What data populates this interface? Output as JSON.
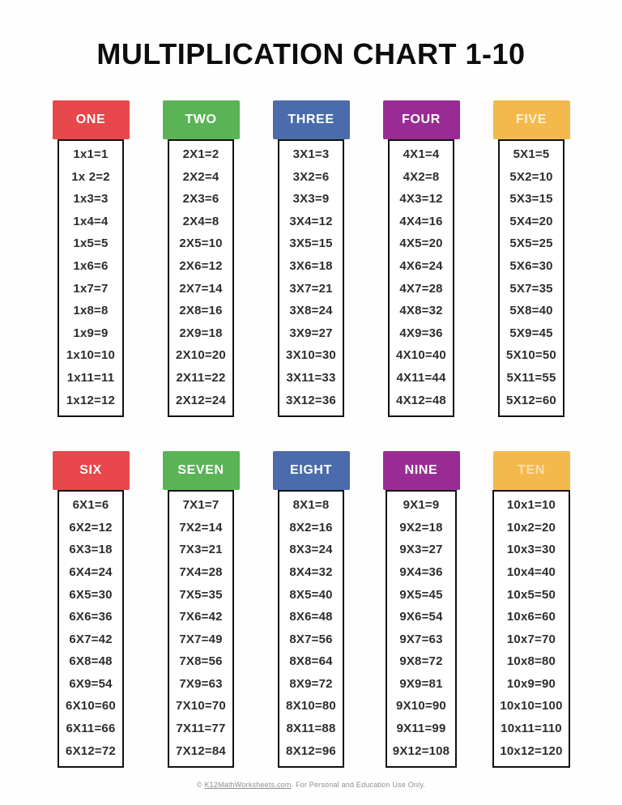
{
  "title": "MULTIPLICATION CHART 1-10",
  "palette": {
    "red": "#E8474B",
    "green": "#5AB455",
    "blue": "#4A6CAC",
    "purple": "#992C94",
    "yellow": "#F3B94C",
    "equation_text": "#2D2D2D",
    "border": "#121212"
  },
  "columns": [
    {
      "label": "ONE",
      "header_color": "#E8474B",
      "label_opacity": 1,
      "rows": [
        "1x1=1",
        "1x 2=2",
        "1x3=3",
        "1x4=4",
        "1x5=5",
        "1x6=6",
        "1x7=7",
        "1x8=8",
        "1x9=9",
        "1x10=10",
        "1x11=11",
        "1x12=12"
      ]
    },
    {
      "label": "TWO",
      "header_color": "#5AB455",
      "label_opacity": 1,
      "rows": [
        "2X1=2",
        "2X2=4",
        "2X3=6",
        "2X4=8",
        "2X5=10",
        "2X6=12",
        "2X7=14",
        "2X8=16",
        "2X9=18",
        "2X10=20",
        "2X11=22",
        "2X12=24"
      ]
    },
    {
      "label": "THREE",
      "header_color": "#4A6CAC",
      "label_opacity": 1,
      "rows": [
        "3X1=3",
        "3X2=6",
        "3X3=9",
        "3X4=12",
        "3X5=15",
        "3X6=18",
        "3X7=21",
        "3X8=24",
        "3X9=27",
        "3X10=30",
        "3X11=33",
        "3X12=36"
      ]
    },
    {
      "label": "FOUR",
      "header_color": "#992C94",
      "label_opacity": 1,
      "rows": [
        "4X1=4",
        "4X2=8",
        "4X3=12",
        "4X4=16",
        "4X5=20",
        "4X6=24",
        "4X7=28",
        "4X8=32",
        "4X9=36",
        "4X10=40",
        "4X11=44",
        "4X12=48"
      ]
    },
    {
      "label": "FIVE",
      "header_color": "#F3B94C",
      "label_opacity": 0.8,
      "rows": [
        "5X1=5",
        "5X2=10",
        "5X3=15",
        "5X4=20",
        "5X5=25",
        "5X6=30",
        "5X7=35",
        "5X8=40",
        "5X9=45",
        "5X10=50",
        "5X11=55",
        "5X12=60"
      ]
    },
    {
      "label": "SIX",
      "header_color": "#E8474B",
      "label_opacity": 1,
      "rows": [
        "6X1=6",
        "6X2=12",
        "6X3=18",
        "6X4=24",
        "6X5=30",
        "6X6=36",
        "6X7=42",
        "6X8=48",
        "6X9=54",
        "6X10=60",
        "6X11=66",
        "6X12=72"
      ]
    },
    {
      "label": "SEVEN",
      "header_color": "#5AB455",
      "label_opacity": 1,
      "rows": [
        "7X1=7",
        "7X2=14",
        "7X3=21",
        "7X4=28",
        "7X5=35",
        "7X6=42",
        "7X7=49",
        "7X8=56",
        "7X9=63",
        "7X10=70",
        "7X11=77",
        "7X12=84"
      ]
    },
    {
      "label": "EIGHT",
      "header_color": "#4A6CAC",
      "label_opacity": 1,
      "rows": [
        "8X1=8",
        "8X2=16",
        "8X3=24",
        "8X4=32",
        "8X5=40",
        "8X6=48",
        "8X7=56",
        "8X8=64",
        "8X9=72",
        "8X10=80",
        "8X11=88",
        "8X12=96"
      ]
    },
    {
      "label": "NINE",
      "header_color": "#992C94",
      "label_opacity": 1,
      "rows": [
        "9X1=9",
        "9X2=18",
        "9X3=27",
        "9X4=36",
        "9X5=45",
        "9X6=54",
        "9X7=63",
        "9X8=72",
        "9X9=81",
        "9X10=90",
        "9X11=99",
        "9X12=108"
      ]
    },
    {
      "label": "TEN",
      "header_color": "#F3B94C",
      "label_opacity": 0.55,
      "rows": [
        "10x1=10",
        "10x2=20",
        "10x3=30",
        "10x4=40",
        "10x5=50",
        "10x6=60",
        "10x7=70",
        "10x8=80",
        "10x9=90",
        "10x10=100",
        "10x11=110",
        "10x12=120"
      ]
    }
  ],
  "footer": {
    "prefix": "© ",
    "link": "K12MathWorksheets.com",
    "suffix": ". For Personal and Education Use Only."
  }
}
